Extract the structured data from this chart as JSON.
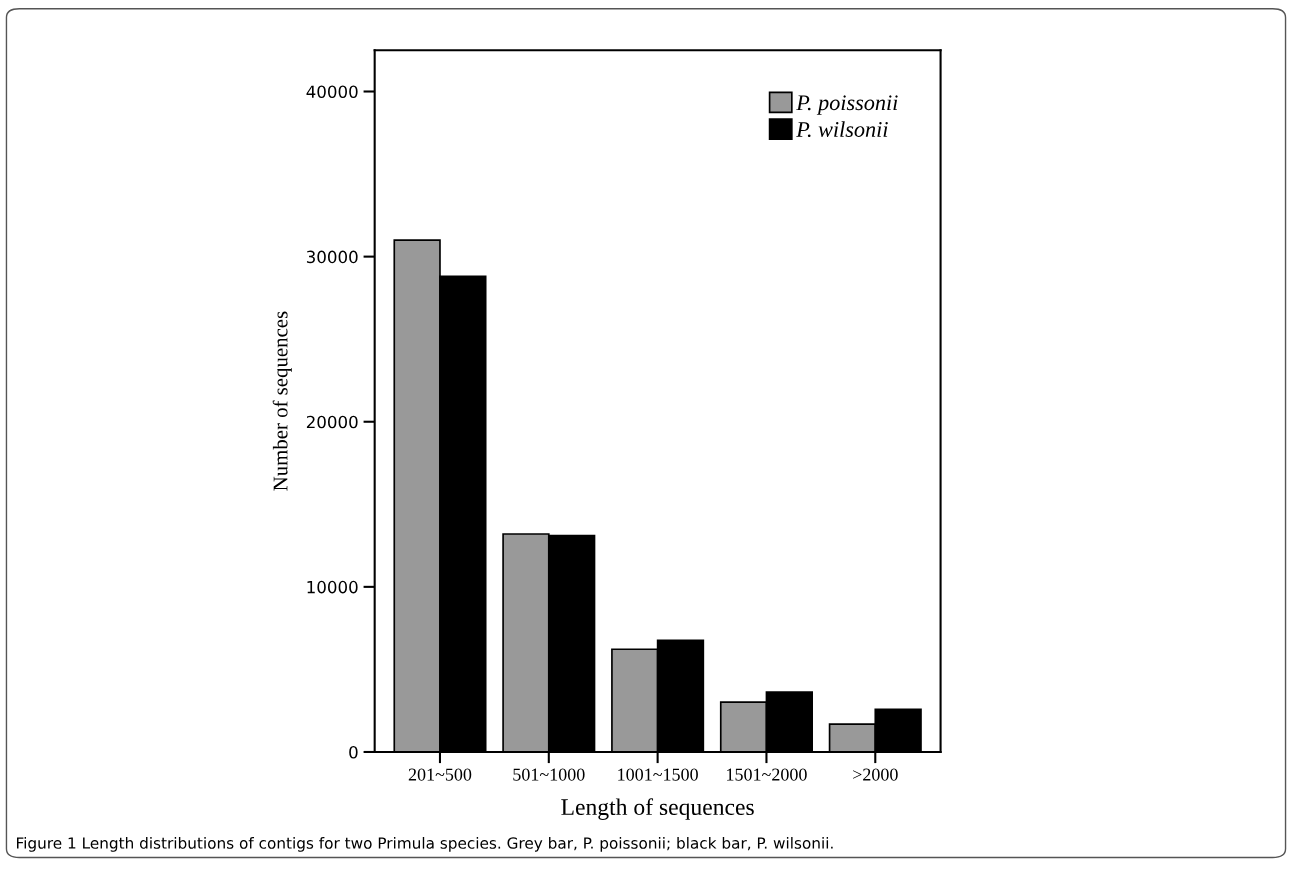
{
  "chart_data": {
    "type": "bar",
    "xlabel": "Length of sequences",
    "ylabel": "Number of sequences",
    "categories": [
      "201~500",
      "501~1000",
      "1001~1500",
      "1501~2000",
      ">2000"
    ],
    "series": [
      {
        "name": "P. poissonii",
        "color": "#999999",
        "values": [
          31000,
          13200,
          6220,
          3020,
          1690
        ]
      },
      {
        "name": "P. wilsonii",
        "color": "#000000",
        "values": [
          28800,
          13100,
          6760,
          3620,
          2580
        ]
      }
    ],
    "ylim": [
      0,
      42500
    ],
    "yticks": [
      0,
      10000,
      20000,
      30000,
      40000
    ],
    "grid": false,
    "legend": "top right",
    "annotations": [
      "Figure 1 Length distributions of contigs for two Primula species. Grey bar, P. poissonii; black bar, P. wilsonii."
    ]
  }
}
